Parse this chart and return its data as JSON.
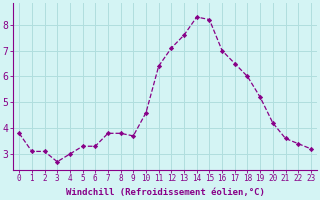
{
  "x": [
    0,
    1,
    2,
    3,
    4,
    5,
    6,
    7,
    8,
    9,
    10,
    11,
    12,
    13,
    14,
    15,
    16,
    17,
    18,
    19,
    20,
    21,
    22,
    23
  ],
  "y": [
    3.8,
    3.1,
    3.1,
    2.7,
    3.0,
    3.3,
    3.3,
    3.8,
    3.8,
    3.7,
    4.6,
    6.4,
    7.1,
    7.6,
    8.3,
    8.2,
    7.0,
    6.5,
    6.0,
    5.2,
    4.2,
    3.6,
    3.4,
    3.2
  ],
  "line_color": "#880088",
  "marker": "D",
  "marker_size": 2.2,
  "bg_color": "#d4f4f4",
  "grid_color": "#b0dede",
  "xlabel": "Windchill (Refroidissement éolien,°C)",
  "xlabel_color": "#880088",
  "xlabel_fontsize": 6.5,
  "tick_color": "#880088",
  "tick_fontsize": 5.5,
  "ytick_fontsize": 7,
  "yticks": [
    3,
    4,
    5,
    6,
    7,
    8
  ],
  "ylim": [
    2.4,
    8.85
  ],
  "xlim": [
    -0.5,
    23.5
  ],
  "spine_color": "#880088",
  "linewidth": 0.9
}
